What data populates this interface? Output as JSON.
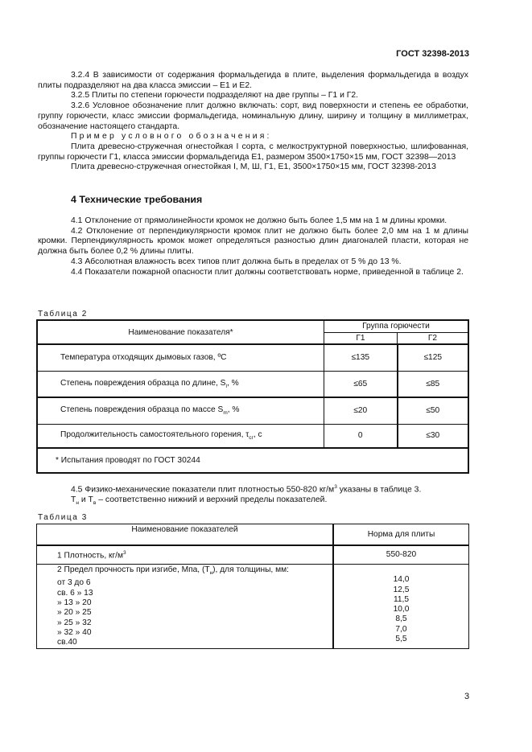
{
  "header": {
    "doc_id": "ГОСТ 32398-2013"
  },
  "paragraphs_3": [
    "3.2.4 В зависимости от содержания формальдегида в плите, выделения формальдегида в воздух плиты подразделяют на два класса эмиссии – Е1 и Е2.",
    "3.2.5 Плиты по степени горючести подразделяют на две группы – Г1 и Г2.",
    "3.2.6 Условное обозначение плит должно включать: сорт, вид поверхности и степень ее обработки, группу горючести, класс эмиссии формальдегида, номинальную длину, ширину и толщину в миллиметрах, обозначение настоящего стандарта."
  ],
  "example": {
    "label": "Пример условного обозначения:",
    "line1": "Плита древесно-стружечная огнестойкая I сорта, с мелкоструктурной поверхностью, шлифованная, группы горючести Г1, класса эмиссии формальдегида Е1, размером 3500×1750×15 мм, ГОСТ 32398—2013",
    "line2": "Плита древесно-стружечная огнестойкая I, М, Ш, Г1, Е1, 3500×1750×15 мм, ГОСТ 32398-2013"
  },
  "section4": {
    "title": "4 Технические требования",
    "paragraphs": [
      "4.1 Отклонение от прямолинейности кромок не должно быть более 1,5 мм на 1 м длины кромки.",
      "4.2 Отклонение от перпендикулярности кромок плит не должно быть более 2,0 мм на 1 м длины кромки. Перпендикулярность кромок может определяться разностью длин диагоналей пласти, которая не должна быть более 0,2 % длины плиты.",
      "4.3 Абсолютная влажность всех типов плит должна быть в пределах от 5 % до 13 %.",
      "4.4 Показатели пожарной опасности плит должны соответствовать норме, приведенной в таблице 2."
    ]
  },
  "table2": {
    "caption": "Таблица 2",
    "col_name": "Наименование показателя*",
    "col_group": "Группа горючести",
    "g1": "Г1",
    "g2": "Г2",
    "rows": [
      {
        "name": "Температура отходящих дымовых газов, ºС",
        "sub": "",
        "tail": "",
        "g1": "≤135",
        "g2": "≤125"
      },
      {
        "name": "Степень повреждения образца по длине, S",
        "sub": "l",
        "tail": ", %",
        "g1": "≤65",
        "g2": "≤85"
      },
      {
        "name": "Степень повреждения образца по массе S",
        "sub": "m",
        "tail": ", %",
        "g1": "≤20",
        "g2": "≤50"
      },
      {
        "name": "Продолжительность самостоятельного горения, τ",
        "sub": "сг",
        "tail": ", с",
        "g1": "0",
        "g2": "≤30"
      }
    ],
    "footnote": "* Испытания проводят по ГОСТ 30244"
  },
  "p45": {
    "a": "4.5 Физико-механические показатели плит плотностью 550-820 кг/м",
    "sup": "3",
    "b": " указаны в таблице 3.",
    "c": "Т",
    "c_sub1": "н",
    "d": " и Т",
    "d_sub": "в",
    "e": " – соответственно нижний и верхний пределы показателей."
  },
  "table3": {
    "caption": "Таблица 3",
    "col_name": "Наименование показателей",
    "col_norm": "Норма для плиты",
    "row1": {
      "name": "1 Плотность, кг/м",
      "sup": "3",
      "value": "550-820"
    },
    "row2": {
      "title_a": "2 Предел прочность при изгибе, Мпа, (Т",
      "title_sub": "н",
      "title_b": "), для толщины, мм:",
      "items": [
        {
          "name": "от 3 до 6",
          "value": "14,0"
        },
        {
          "name": "св. 6 » 13",
          "value": "12,5"
        },
        {
          "name": "» 13 » 20",
          "value": "11,5"
        },
        {
          "name": "» 20 » 25",
          "value": "10,0"
        },
        {
          "name": "» 25 » 32",
          "value": "8,5"
        },
        {
          "name": "» 32 » 40",
          "value": "7,0"
        },
        {
          "name": "св.40",
          "value": "5,5"
        }
      ]
    }
  },
  "page_number": "3"
}
